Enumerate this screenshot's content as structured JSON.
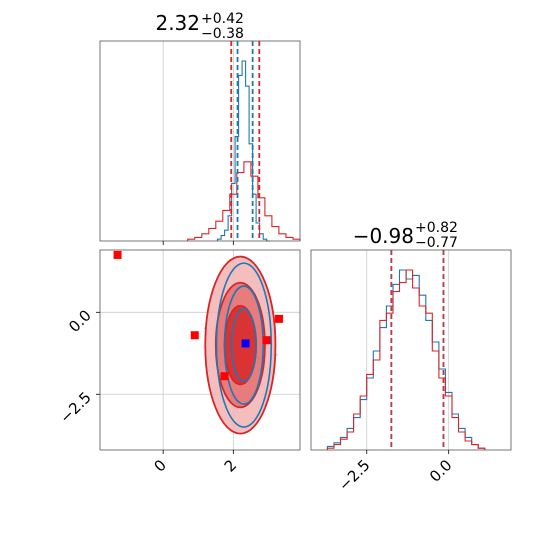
{
  "chart_data": [
    {
      "type": "histogram",
      "panel": "marginal parameter 1",
      "title": {
        "value": "2.32",
        "upper": "+0.42",
        "lower": "−0.38"
      },
      "xlim": [
        -1.8,
        3.9
      ],
      "x_ticks": [
        "0",
        "2"
      ],
      "tick_labels_shown": false,
      "grid": true,
      "series": [
        {
          "color": "#1f77b4",
          "style": "step",
          "bins_x": [
            1.6,
            1.7,
            1.8,
            1.9,
            2.0,
            2.1,
            2.2,
            2.3,
            2.4,
            2.5,
            2.6,
            2.7,
            2.8,
            2.9,
            3.0
          ],
          "counts": [
            0.01,
            0.03,
            0.06,
            0.14,
            0.32,
            0.58,
            0.92,
            1.0,
            0.86,
            0.54,
            0.26,
            0.1,
            0.04,
            0.01,
            0.0
          ]
        },
        {
          "color": "#d62728",
          "style": "step",
          "bins_x": [
            0.8,
            1.0,
            1.2,
            1.4,
            1.6,
            1.8,
            2.0,
            2.2,
            2.4,
            2.6,
            2.8,
            3.0,
            3.2,
            3.4,
            3.6,
            3.8
          ],
          "counts": [
            0.01,
            0.02,
            0.04,
            0.07,
            0.11,
            0.17,
            0.26,
            0.38,
            0.44,
            0.36,
            0.24,
            0.14,
            0.08,
            0.04,
            0.02,
            0.01
          ]
        }
      ],
      "vlines": [
        {
          "x": 1.94,
          "color": "#d62728"
        },
        {
          "x": 2.12,
          "color": "#1f77b4"
        },
        {
          "x": 2.55,
          "color": "#1f77b4"
        },
        {
          "x": 2.74,
          "color": "#d62728"
        }
      ]
    },
    {
      "type": "contour",
      "panel": "joint parameter 1 vs parameter 2",
      "xlim": [
        -1.8,
        3.9
      ],
      "ylim": [
        -4.2,
        1.9
      ],
      "x_ticks": [
        "0",
        "2"
      ],
      "y_ticks": [
        "0.0",
        "−2.5"
      ],
      "grid": true,
      "contours": [
        {
          "color": "#1f77b4",
          "center": [
            2.3,
            -1.0
          ],
          "levels": [
            [
              0.35,
              1.1
            ],
            [
              0.55,
              1.8
            ],
            [
              0.78,
              2.5
            ]
          ]
        },
        {
          "color": "#d62728",
          "center": [
            2.2,
            -1.0
          ],
          "levels": [
            [
              0.45,
              1.2
            ],
            [
              0.7,
              1.9
            ],
            [
              1.0,
              2.7
            ]
          ]
        }
      ],
      "markers": [
        {
          "x": -1.3,
          "y": 1.75,
          "color": "#ff0000"
        },
        {
          "x": 0.9,
          "y": -0.7,
          "color": "#ff0000"
        },
        {
          "x": 1.75,
          "y": -1.95,
          "color": "#ff0000"
        },
        {
          "x": 2.95,
          "y": -0.85,
          "color": "#ff0000"
        },
        {
          "x": 3.3,
          "y": -0.2,
          "color": "#ff0000"
        },
        {
          "x": 2.35,
          "y": -0.95,
          "color": "#0000ff"
        }
      ]
    },
    {
      "type": "histogram",
      "panel": "marginal parameter 2",
      "title": {
        "value": "−0.98",
        "upper": "+0.82",
        "lower": "−0.77"
      },
      "xlim": [
        -4.2,
        1.9
      ],
      "x_ticks": [
        "−2.5",
        "0.0"
      ],
      "grid": true,
      "series": [
        {
          "color": "#1f77b4",
          "style": "step",
          "bins_x": [
            -3.6,
            -3.4,
            -3.2,
            -3.0,
            -2.8,
            -2.6,
            -2.4,
            -2.2,
            -2.0,
            -1.8,
            -1.6,
            -1.4,
            -1.2,
            -1.0,
            -0.8,
            -0.6,
            -0.4,
            -0.2,
            0.0,
            0.2,
            0.4,
            0.6,
            0.8,
            1.0
          ],
          "counts": [
            0.02,
            0.04,
            0.07,
            0.12,
            0.18,
            0.28,
            0.4,
            0.55,
            0.68,
            0.8,
            0.92,
            1.0,
            0.95,
            0.97,
            0.86,
            0.72,
            0.6,
            0.45,
            0.32,
            0.2,
            0.12,
            0.07,
            0.03,
            0.01
          ]
        },
        {
          "color": "#d62728",
          "style": "step",
          "bins_x": [
            -3.6,
            -3.4,
            -3.2,
            -3.0,
            -2.8,
            -2.6,
            -2.4,
            -2.2,
            -2.0,
            -1.8,
            -1.6,
            -1.4,
            -1.2,
            -1.0,
            -0.8,
            -0.6,
            -0.4,
            -0.2,
            0.0,
            0.2,
            0.4,
            0.6,
            0.8,
            1.0
          ],
          "counts": [
            0.01,
            0.03,
            0.06,
            0.1,
            0.2,
            0.3,
            0.42,
            0.5,
            0.72,
            0.76,
            0.88,
            0.93,
            1.0,
            0.9,
            0.8,
            0.76,
            0.55,
            0.4,
            0.3,
            0.18,
            0.1,
            0.05,
            0.03,
            0.01
          ]
        }
      ],
      "vlines": [
        {
          "x": -1.75,
          "color": "#1f77b4"
        },
        {
          "x": -1.75,
          "color": "#d62728"
        },
        {
          "x": -0.16,
          "color": "#1f77b4"
        },
        {
          "x": -0.16,
          "color": "#d62728"
        }
      ]
    }
  ]
}
